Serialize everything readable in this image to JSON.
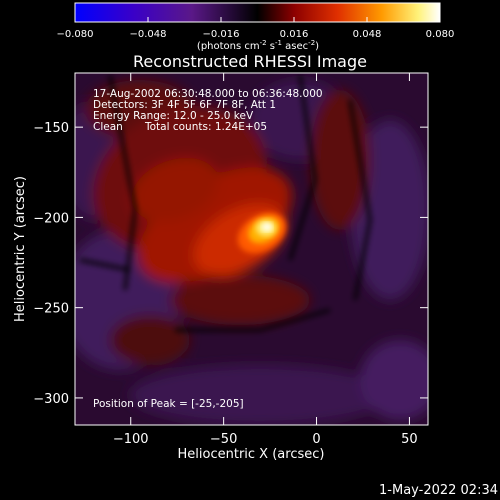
{
  "chart_data": {
    "type": "heatmap",
    "title": "Reconstructed RHESSI Image",
    "xlabel": "Heliocentric X (arcsec)",
    "ylabel": "Heliocentric Y (arcsec)",
    "xlim": [
      -130,
      60
    ],
    "ylim": [
      -315,
      -120
    ],
    "x_ticks": [
      -100,
      -50,
      0,
      50
    ],
    "y_ticks": [
      -300,
      -250,
      -200,
      -150
    ],
    "colorbar": {
      "min": -0.08,
      "max": 0.08,
      "ticks": [
        "-0.080",
        "-0.048",
        "-0.016",
        "0.016",
        "0.048",
        "0.080"
      ],
      "tick_values": [
        -0.08,
        -0.048,
        -0.016,
        0.016,
        0.048,
        0.08
      ],
      "label_parts": {
        "open": "(photons cm",
        "exp1": "-2",
        "s": " s",
        "exp2": "-1",
        "asec": " asec",
        "exp3": "-2",
        "close": ")"
      },
      "colors": [
        "#0000ff",
        "#3a00c8",
        "#5a1888",
        "#000000",
        "#8c0000",
        "#e03000",
        "#ff9a00",
        "#fff27a",
        "#ffffff"
      ]
    },
    "annotations": {
      "line1": "17-Aug-2002 06:30:48.000 to 06:36:48.000",
      "line2": "Detectors: 3F 4F 5F 6F 7F 8F, Att 1",
      "line3": "Energy Range: 12.0 - 25.0 keV",
      "line4_left": "Clean",
      "line4_right": "Total counts: 1.24E+05",
      "peak": "Position of Peak = [-25,-205]"
    },
    "peak": {
      "x": -25,
      "y": -205
    },
    "grid": false,
    "legend": "colorbar-top"
  },
  "footer": {
    "timestamp": "1-May-2022 02:34"
  }
}
